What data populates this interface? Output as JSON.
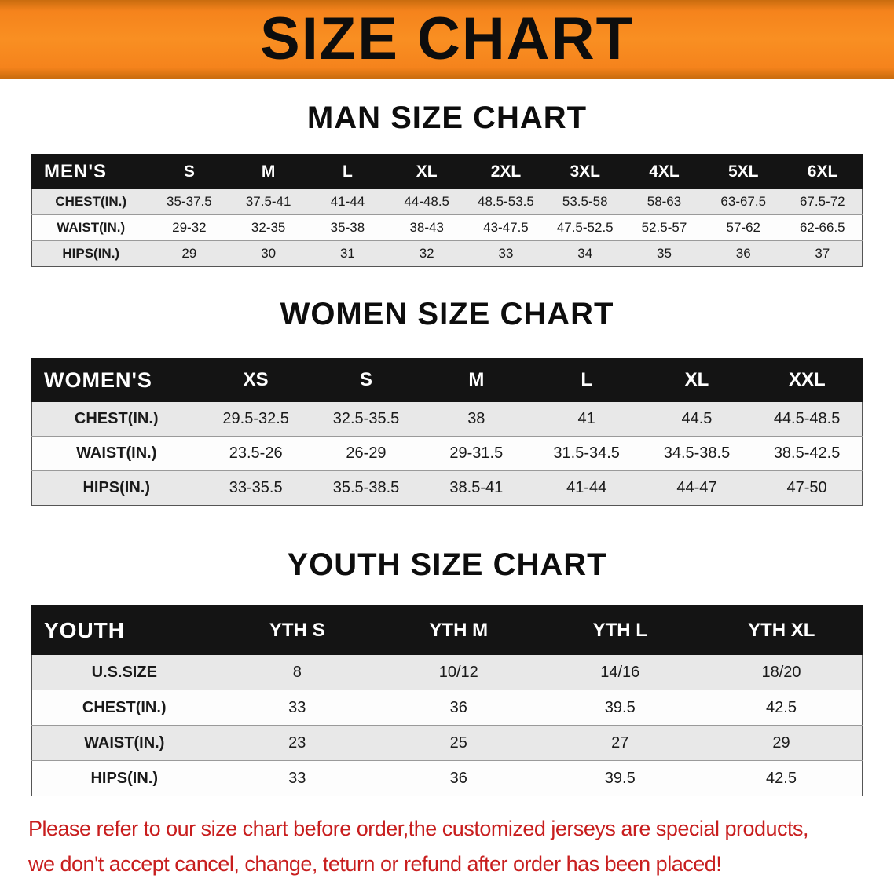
{
  "banner": {
    "title": "SIZE CHART"
  },
  "colors": {
    "banner_orange": "#f5831c",
    "table_header_black": "#141414",
    "row_stripe_gray": "#e8e8e8",
    "disclaimer_red": "#c81e1e"
  },
  "sections": {
    "men": {
      "heading": "MAN SIZE CHART",
      "table": {
        "header": [
          "MEN'S",
          "S",
          "M",
          "L",
          "XL",
          "2XL",
          "3XL",
          "4XL",
          "5XL",
          "6XL"
        ],
        "rows": [
          [
            "CHEST(IN.)",
            "35-37.5",
            "37.5-41",
            "41-44",
            "44-48.5",
            "48.5-53.5",
            "53.5-58",
            "58-63",
            "63-67.5",
            "67.5-72"
          ],
          [
            "WAIST(IN.)",
            "29-32",
            "32-35",
            "35-38",
            "38-43",
            "43-47.5",
            "47.5-52.5",
            "52.5-57",
            "57-62",
            "62-66.5"
          ],
          [
            "HIPS(IN.)",
            "29",
            "30",
            "31",
            "32",
            "33",
            "34",
            "35",
            "36",
            "37"
          ]
        ]
      }
    },
    "women": {
      "heading": "WOMEN SIZE CHART",
      "table": {
        "header": [
          "WOMEN'S",
          "XS",
          "S",
          "M",
          "L",
          "XL",
          "XXL"
        ],
        "rows": [
          [
            "CHEST(IN.)",
            "29.5-32.5",
            "32.5-35.5",
            "38",
            "41",
            "44.5",
            "44.5-48.5"
          ],
          [
            "WAIST(IN.)",
            "23.5-26",
            "26-29",
            "29-31.5",
            "31.5-34.5",
            "34.5-38.5",
            "38.5-42.5"
          ],
          [
            "HIPS(IN.)",
            "33-35.5",
            "35.5-38.5",
            "38.5-41",
            "41-44",
            "44-47",
            "47-50"
          ]
        ]
      }
    },
    "youth": {
      "heading": "YOUTH SIZE CHART",
      "table": {
        "header": [
          "YOUTH",
          "YTH S",
          "YTH M",
          "YTH L",
          "YTH XL"
        ],
        "rows": [
          [
            "U.S.SIZE",
            "8",
            "10/12",
            "14/16",
            "18/20"
          ],
          [
            "CHEST(IN.)",
            "33",
            "36",
            "39.5",
            "42.5"
          ],
          [
            "WAIST(IN.)",
            "23",
            "25",
            "27",
            "29"
          ],
          [
            "HIPS(IN.)",
            "33",
            "36",
            "39.5",
            "42.5"
          ]
        ]
      }
    }
  },
  "disclaimer": {
    "line1": "Please refer to our size chart before order,the customized jerseys are special products,",
    "line2": "we don't accept cancel, change, teturn or refund after order has been placed!"
  }
}
